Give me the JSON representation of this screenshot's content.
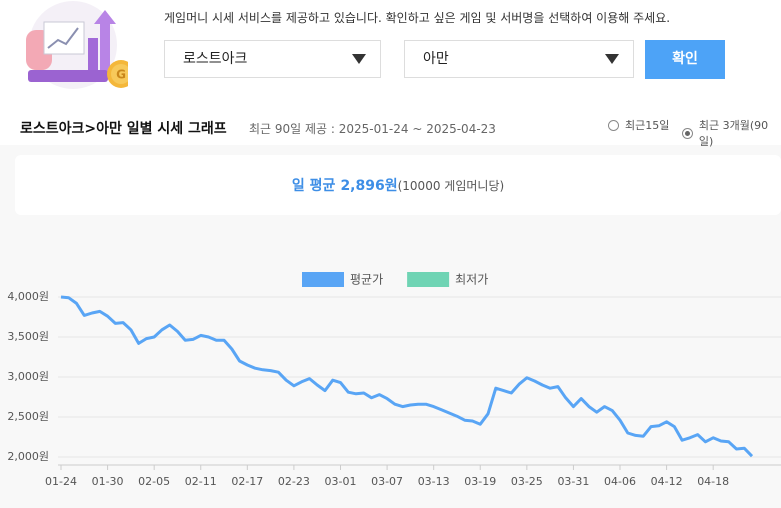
{
  "header": {
    "instruction": "게임머니 시세 서비스를 제공하고 있습니다. 확인하고 싶은 게임 및 서버명을 선택하여 이용해 주세요."
  },
  "selectors": {
    "game": "로스트아크",
    "server": "아만",
    "button": "확인"
  },
  "section": {
    "title": "로스트아크>아만 일별 시세 그래프",
    "subtitle": "최근 90일 제공 : 2025-01-24 ~ 2025-04-23",
    "options": [
      {
        "label": "최근15일",
        "selected": false
      },
      {
        "label": "최근 3개월(90일)",
        "selected": true
      }
    ]
  },
  "average": {
    "label": "일 평균",
    "value": "2,896원",
    "unit": "(10000 게임머니당)"
  },
  "chart_data": {
    "type": "line",
    "categories": [
      "01-24",
      null,
      null,
      null,
      null,
      null,
      "01-30",
      null,
      null,
      null,
      null,
      null,
      "02-05",
      null,
      null,
      null,
      null,
      null,
      "02-11",
      null,
      null,
      null,
      null,
      null,
      "02-17",
      null,
      null,
      null,
      null,
      null,
      "02-23",
      null,
      null,
      null,
      null,
      null,
      "03-01",
      null,
      null,
      null,
      null,
      null,
      "03-07",
      null,
      null,
      null,
      null,
      null,
      "03-13",
      null,
      null,
      null,
      null,
      null,
      "03-19",
      null,
      null,
      null,
      null,
      null,
      "03-25",
      null,
      null,
      null,
      null,
      null,
      "03-31",
      null,
      null,
      null,
      null,
      null,
      "04-06",
      null,
      null,
      null,
      null,
      null,
      "04-12",
      null,
      null,
      null,
      null,
      null,
      "04-18",
      null,
      null,
      null,
      null,
      null
    ],
    "series": [
      {
        "name": "평균가",
        "color": "#59a5f5",
        "values": [
          4000,
          3990,
          3920,
          3770,
          3800,
          3820,
          3760,
          3670,
          3680,
          3590,
          3420,
          3480,
          3500,
          3590,
          3650,
          3570,
          3460,
          3470,
          3520,
          3500,
          3460,
          3460,
          3350,
          3200,
          3150,
          3110,
          3090,
          3080,
          3060,
          2960,
          2890,
          2940,
          2980,
          2900,
          2830,
          2960,
          2930,
          2810,
          2790,
          2800,
          2740,
          2780,
          2730,
          2660,
          2630,
          2650,
          2660,
          2660,
          2630,
          2590,
          2550,
          2510,
          2460,
          2450,
          2410,
          2540,
          2860,
          2830,
          2800,
          2910,
          2990,
          2950,
          2900,
          2860,
          2880,
          2740,
          2630,
          2730,
          2630,
          2560,
          2630,
          2580,
          2460,
          2300,
          2270,
          2260,
          2380,
          2390,
          2440,
          2380,
          2210,
          2240,
          2280,
          2190,
          2240,
          2200,
          2190,
          2100,
          2110,
          2010
        ]
      },
      {
        "name": "최저가",
        "color": "#6fd4b4",
        "hidden": true
      }
    ],
    "ylim": [
      1900,
      4100
    ],
    "yticks": [
      {
        "value": 2000,
        "label": "2,000원"
      },
      {
        "value": 2500,
        "label": "2,500원"
      },
      {
        "value": 3000,
        "label": "3,000원"
      },
      {
        "value": 3500,
        "label": "3,500원"
      },
      {
        "value": 4000,
        "label": "4,000원"
      }
    ],
    "grid": true,
    "legend": "top"
  }
}
